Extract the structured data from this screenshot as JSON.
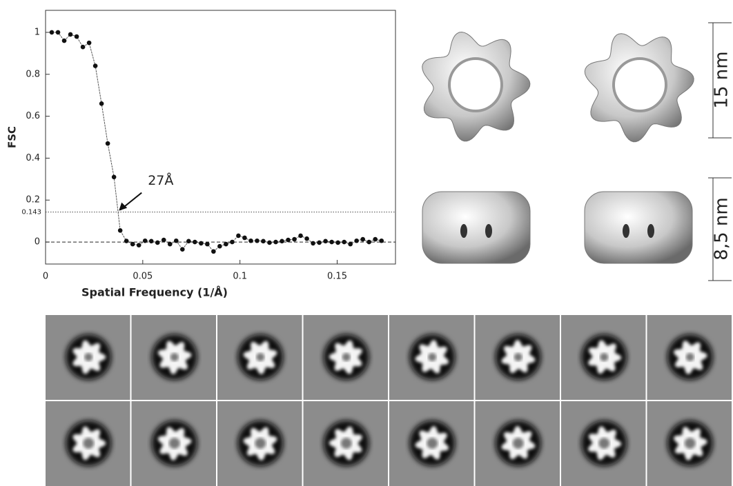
{
  "chart_data": {
    "type": "line",
    "x": [
      0.0032,
      0.0064,
      0.0096,
      0.0128,
      0.016,
      0.0192,
      0.0224,
      0.0256,
      0.0288,
      0.032,
      0.0352,
      0.0384,
      0.0416,
      0.0448,
      0.048,
      0.0512,
      0.0544,
      0.0576,
      0.0608,
      0.064,
      0.0672,
      0.0704,
      0.0736,
      0.0768,
      0.08,
      0.0832,
      0.0864,
      0.0896,
      0.0928,
      0.096,
      0.0992,
      0.1024,
      0.1056,
      0.1088,
      0.112,
      0.1152,
      0.1184,
      0.1216,
      0.1248,
      0.128,
      0.1312,
      0.1344,
      0.1376,
      0.1408,
      0.144,
      0.1472,
      0.1504,
      0.1536,
      0.1568,
      0.16,
      0.1632,
      0.1664,
      0.1696,
      0.1728
    ],
    "values": [
      1.0,
      1.0,
      0.96,
      0.99,
      0.98,
      0.93,
      0.95,
      0.84,
      0.66,
      0.47,
      0.31,
      0.055,
      0.005,
      -0.01,
      -0.015,
      0.006,
      0.004,
      -0.003,
      0.01,
      -0.01,
      0.006,
      -0.035,
      0.004,
      0,
      -0.006,
      -0.01,
      -0.045,
      -0.02,
      -0.01,
      0,
      0.03,
      0.02,
      0.006,
      0.006,
      0.004,
      -0.003,
      0,
      0.004,
      0.01,
      0.013,
      0.03,
      0.016,
      -0.006,
      -0.003,
      0.004,
      0,
      -0.003,
      0,
      -0.01,
      0.006,
      0.013,
      0,
      0.013,
      0.006
    ],
    "color": "#111111",
    "x_label": "Spatial Frequency (1/Å)",
    "y_label": "FSC",
    "xlim": [
      0,
      0.18
    ],
    "ylim": [
      -0.105,
      1.105
    ],
    "xticks": [
      0,
      0.05,
      0.1,
      0.15
    ],
    "yticks": [
      0,
      0.2,
      0.4,
      0.6,
      0.8,
      1
    ],
    "threshold": 0.143,
    "annotation": {
      "text": "27Å",
      "x": 0.037,
      "y": 0.143
    }
  },
  "scale_bars": [
    {
      "label": "15 nm"
    },
    {
      "label": "8,5 nm"
    }
  ]
}
